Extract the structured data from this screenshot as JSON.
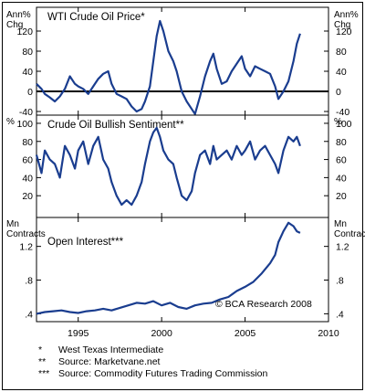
{
  "chart_data": [
    {
      "type": "line",
      "title": "WTI Crude Oil Price*",
      "unit_label": [
        "Ann%",
        "Chg"
      ],
      "ylim": [
        -40,
        160
      ],
      "yticks": [
        "120",
        "80",
        "40",
        "0",
        "-40"
      ],
      "ytick_values": [
        120,
        80,
        40,
        0,
        -40
      ],
      "zero_line": true,
      "color": "#1a3d8f",
      "series": [
        {
          "x": [
            1992.5,
            1992.8,
            1993.0,
            1993.3,
            1993.6,
            1993.9,
            1994.2,
            1994.5,
            1994.8,
            1995.0,
            1995.3,
            1995.6,
            1995.9,
            1996.2,
            1996.5,
            1996.8,
            1997.0,
            1997.3,
            1997.6,
            1997.9,
            1998.2,
            1998.5,
            1998.8,
            1999.0,
            1999.3,
            1999.5,
            1999.7,
            1999.9,
            2000.1,
            2000.4,
            2000.7,
            2000.9,
            2001.2,
            2001.5,
            2001.8,
            2002.0,
            2002.3,
            2002.6,
            2002.9,
            2003.1,
            2003.3,
            2003.6,
            2003.9,
            2004.2,
            2004.5,
            2004.8,
            2005.0,
            2005.3,
            2005.6,
            2005.9,
            2006.2,
            2006.5,
            2006.8,
            2007.0,
            2007.3,
            2007.6,
            2007.9,
            2008.1,
            2008.3
          ],
          "y": [
            15,
            5,
            -5,
            -12,
            -20,
            -10,
            5,
            30,
            15,
            10,
            5,
            -5,
            10,
            25,
            35,
            40,
            15,
            -5,
            -10,
            -15,
            -30,
            -40,
            -35,
            -20,
            10,
            60,
            110,
            140,
            120,
            80,
            60,
            40,
            0,
            -20,
            -35,
            -45,
            -10,
            30,
            60,
            75,
            45,
            15,
            20,
            40,
            55,
            70,
            45,
            30,
            50,
            45,
            40,
            35,
            10,
            -15,
            0,
            20,
            60,
            95,
            115
          ]
        }
      ]
    },
    {
      "type": "line",
      "title": "Crude Oil Bullish Sentiment**",
      "unit_label": [
        "%"
      ],
      "ylim": [
        0,
        105
      ],
      "yticks": [
        "100",
        "80",
        "60",
        "40",
        "20"
      ],
      "ytick_values": [
        100,
        80,
        60,
        40,
        20
      ],
      "zero_line": false,
      "color": "#1a3d8f",
      "series": [
        {
          "x": [
            1992.5,
            1992.8,
            1993.0,
            1993.3,
            1993.6,
            1993.9,
            1994.2,
            1994.5,
            1994.8,
            1995.0,
            1995.3,
            1995.6,
            1995.9,
            1996.2,
            1996.5,
            1996.8,
            1997.0,
            1997.3,
            1997.6,
            1997.9,
            1998.2,
            1998.5,
            1998.8,
            1999.0,
            1999.3,
            1999.5,
            1999.7,
            1999.9,
            2000.1,
            2000.4,
            2000.7,
            2000.9,
            2001.2,
            2001.5,
            2001.8,
            2002.0,
            2002.3,
            2002.6,
            2002.9,
            2003.1,
            2003.3,
            2003.6,
            2003.9,
            2004.2,
            2004.5,
            2004.8,
            2005.0,
            2005.3,
            2005.6,
            2005.9,
            2006.2,
            2006.5,
            2006.8,
            2007.0,
            2007.3,
            2007.6,
            2007.9,
            2008.1,
            2008.3
          ],
          "y": [
            65,
            45,
            70,
            60,
            55,
            40,
            75,
            65,
            50,
            70,
            80,
            55,
            75,
            85,
            60,
            50,
            35,
            20,
            10,
            15,
            10,
            20,
            35,
            55,
            80,
            90,
            95,
            85,
            70,
            60,
            55,
            40,
            20,
            15,
            25,
            45,
            65,
            70,
            55,
            75,
            60,
            65,
            70,
            60,
            75,
            65,
            70,
            80,
            60,
            70,
            75,
            65,
            55,
            45,
            70,
            85,
            80,
            85,
            75
          ]
        }
      ]
    },
    {
      "type": "line",
      "title": "Open Interest***",
      "unit_label": [
        "Mn",
        "Contracts"
      ],
      "ylim": [
        0.35,
        1.5
      ],
      "yticks": [
        "1.2",
        ".8",
        ".4"
      ],
      "ytick_values": [
        1.2,
        0.8,
        0.4
      ],
      "zero_line": false,
      "color": "#1a3d8f",
      "xticks": [
        "1995",
        "2000",
        "2005",
        "2010"
      ],
      "xtick_values": [
        1995,
        2000,
        2005,
        2010
      ],
      "credit": "© BCA Research 2008",
      "series": [
        {
          "x": [
            1992.5,
            1993.0,
            1993.5,
            1994.0,
            1994.5,
            1995.0,
            1995.5,
            1996.0,
            1996.5,
            1997.0,
            1997.5,
            1998.0,
            1998.5,
            1999.0,
            1999.5,
            2000.0,
            2000.5,
            2001.0,
            2001.5,
            2002.0,
            2002.5,
            2003.0,
            2003.5,
            2004.0,
            2004.5,
            2005.0,
            2005.5,
            2006.0,
            2006.5,
            2006.8,
            2007.0,
            2007.3,
            2007.6,
            2007.9,
            2008.1,
            2008.3
          ],
          "y": [
            0.4,
            0.42,
            0.43,
            0.44,
            0.42,
            0.41,
            0.43,
            0.44,
            0.46,
            0.44,
            0.47,
            0.5,
            0.53,
            0.52,
            0.55,
            0.5,
            0.53,
            0.48,
            0.46,
            0.5,
            0.52,
            0.53,
            0.57,
            0.6,
            0.67,
            0.72,
            0.78,
            0.88,
            1.0,
            1.1,
            1.25,
            1.38,
            1.48,
            1.44,
            1.38,
            1.36
          ]
        }
      ]
    }
  ],
  "x_axis": {
    "xlim": [
      1992.5,
      2010
    ]
  },
  "footnotes": [
    {
      "mark": "*",
      "text": "West Texas Intermediate"
    },
    {
      "mark": "**",
      "text": "Source: Marketvane.net"
    },
    {
      "mark": "***",
      "text": "Source: Commodity Futures Trading Commission"
    }
  ]
}
